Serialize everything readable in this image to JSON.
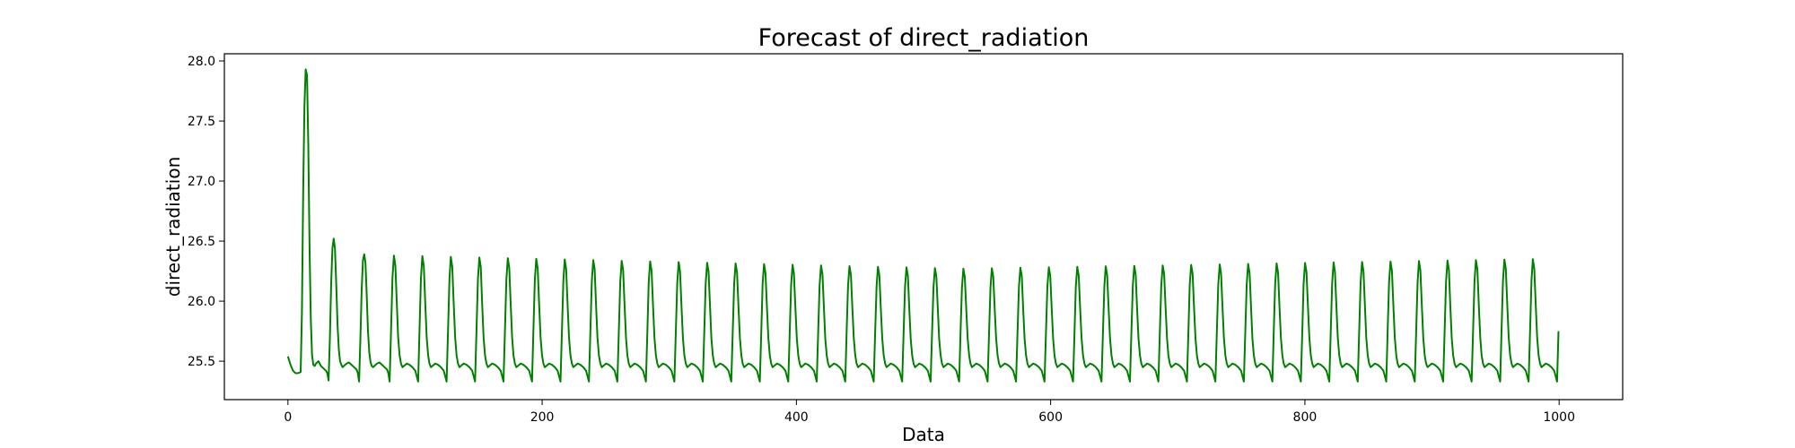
{
  "chart_data": {
    "type": "line",
    "title": "Forecast of direct_radiation",
    "xlabel": "Data",
    "ylabel": "direct_radiation",
    "xlim": [
      -50,
      1050
    ],
    "ylim": [
      25.18,
      28.06
    ],
    "x_ticks": [
      0,
      200,
      400,
      600,
      800,
      1000
    ],
    "x_tick_labels": [
      "0",
      "200",
      "400",
      "600",
      "800",
      "1000"
    ],
    "y_ticks": [
      25.5,
      26.0,
      26.5,
      27.0,
      27.5,
      28.0
    ],
    "y_tick_labels": [
      "25.5",
      "26.0",
      "26.5",
      "27.0",
      "27.5",
      "28.0"
    ],
    "grid": false,
    "series": [
      {
        "color": "#008000",
        "line_width": 2,
        "segments": [
          {
            "x": [
              0,
              2,
              4,
              6,
              8,
              10
            ],
            "y": [
              25.54,
              25.47,
              25.42,
              25.4,
              25.4,
              25.41
            ]
          },
          {
            "x": [
              10,
              11,
              12,
              13,
              14,
              15,
              16,
              17,
              18,
              19,
              20,
              21,
              22,
              24,
              26,
              28,
              30,
              31,
              32,
              33,
              34,
              35,
              36,
              37,
              38,
              39,
              40,
              41,
              42,
              43,
              44,
              46,
              48,
              50,
              52,
              54,
              55,
              56,
              57,
              58,
              59,
              60,
              61,
              62,
              63,
              64,
              65,
              66,
              67,
              68,
              70,
              72,
              74,
              76,
              78,
              79,
              80
            ],
            "y": [
              25.41,
              25.9,
              26.9,
              27.62,
              27.93,
              27.88,
              27.3,
              26.45,
              25.85,
              25.55,
              25.47,
              25.46,
              25.48,
              25.5,
              25.46,
              25.44,
              25.42,
              25.4,
              25.34,
              25.7,
              26.15,
              26.44,
              26.52,
              26.44,
              26.15,
              25.8,
              25.6,
              25.5,
              25.47,
              25.45,
              25.46,
              25.48,
              25.49,
              25.47,
              25.45,
              25.43,
              25.4,
              25.33,
              25.7,
              26.1,
              26.34,
              26.39,
              26.32,
              26.05,
              25.75,
              25.57,
              25.49,
              25.46,
              25.45,
              25.46,
              25.48,
              25.49,
              25.47,
              25.45,
              25.43,
              25.4,
              25.33
            ]
          }
        ],
        "periodic": {
          "start_x": 80,
          "end_x": 1000,
          "period": 22.4,
          "shape_phase": [
            0,
            0.05,
            0.1,
            0.15,
            0.2,
            0.25,
            0.3,
            0.35,
            0.4,
            0.45,
            0.5,
            0.6,
            0.7,
            0.8,
            0.9,
            1.0
          ],
          "shape_values": [
            25.33,
            25.75,
            26.18,
            26.36,
            26.28,
            25.98,
            25.7,
            25.55,
            25.48,
            25.45,
            25.46,
            25.48,
            25.47,
            25.45,
            25.42,
            25.33
          ],
          "peak_first": 26.38,
          "peak_mid": 26.27,
          "peak_last": 26.35
        }
      }
    ]
  }
}
